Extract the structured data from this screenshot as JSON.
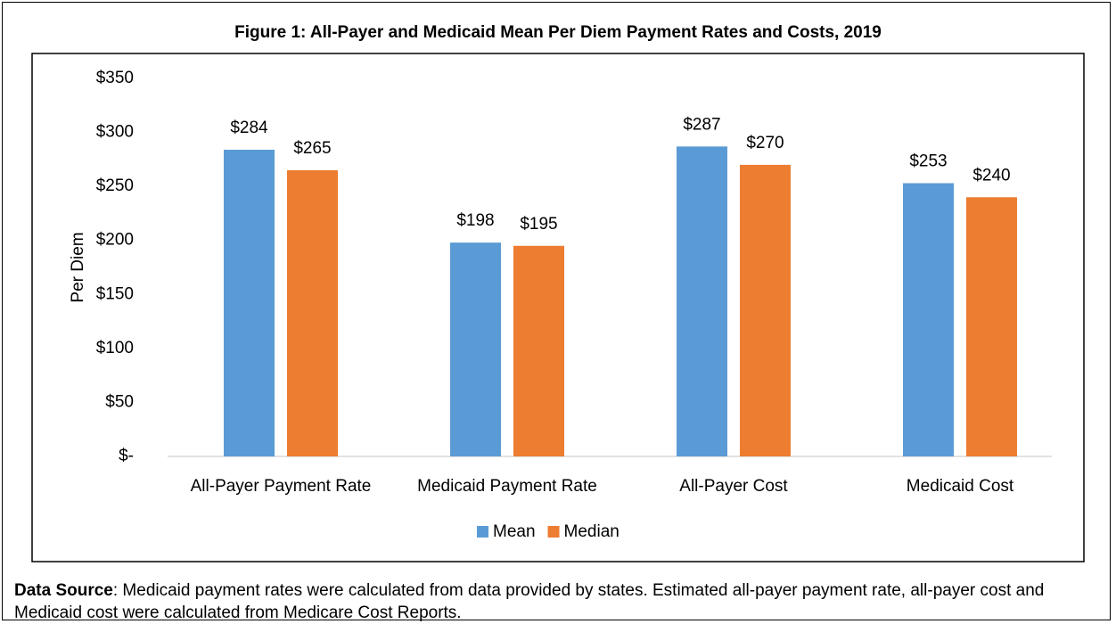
{
  "chart_data": {
    "type": "bar",
    "title": "Figure 1: All-Payer and Medicaid Mean Per Diem Payment Rates and Costs, 2019",
    "y_label": "Per Diem",
    "categories": [
      "All-Payer Payment Rate",
      "Medicaid Payment Rate",
      "All-Payer Cost",
      "Medicaid Cost"
    ],
    "series": [
      {
        "name": "Mean",
        "color": "#5b9bd5",
        "values": [
          284,
          198,
          287,
          253
        ],
        "value_labels": [
          "$284",
          "$198",
          "$287",
          "$253"
        ]
      },
      {
        "name": "Median",
        "color": "#ed7d31",
        "values": [
          265,
          195,
          270,
          240
        ],
        "value_labels": [
          "$265",
          "$195",
          "$270",
          "$240"
        ]
      }
    ],
    "ylim": [
      0,
      350
    ],
    "yticks": [
      {
        "value": 0,
        "label": "$-"
      },
      {
        "value": 50,
        "label": "$50"
      },
      {
        "value": 100,
        "label": "$100"
      },
      {
        "value": 150,
        "label": "$150"
      },
      {
        "value": 200,
        "label": "$200"
      },
      {
        "value": 250,
        "label": "$250"
      },
      {
        "value": 300,
        "label": "$300"
      },
      {
        "value": 350,
        "label": "$350"
      }
    ],
    "legend": "bottom",
    "title_color": "#2e75b6"
  },
  "footnote": {
    "label": "Data Source",
    "text": ":  Medicaid payment rates were calculated from data provided by states. Estimated all-payer payment rate, all-payer cost and Medicaid cost were calculated from Medicare Cost Reports."
  }
}
